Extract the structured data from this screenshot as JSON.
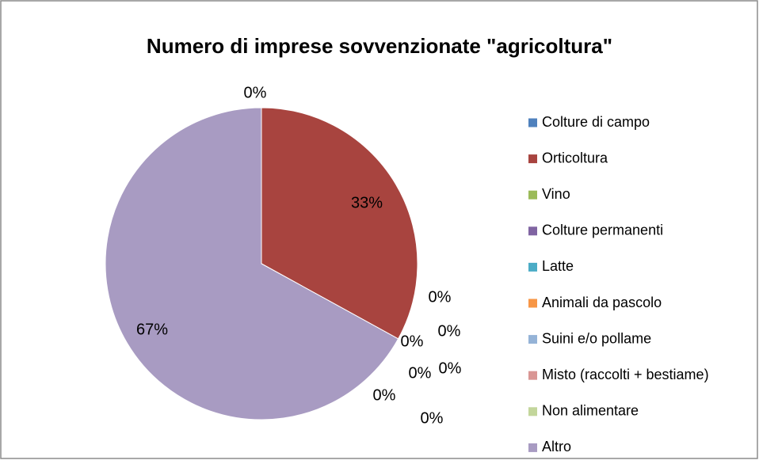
{
  "chart_data": {
    "type": "pie",
    "title": "Numero di imprese sovvenzionate \"agricoltura\"",
    "categories": [
      "Colture di campo",
      "Orticoltura",
      "Vino",
      "Colture permanenti",
      "Latte",
      "Animali da pascolo",
      "Suini e/o pollame",
      "Misto (raccolti + bestiame)",
      "Non alimentare",
      "Altro"
    ],
    "values": [
      0,
      33,
      0,
      0,
      0,
      0,
      0,
      0,
      0,
      67
    ],
    "value_labels": [
      "0%",
      "33%",
      "0%",
      "0%",
      "0%",
      "0%",
      "0%",
      "0%",
      "0%",
      "67%"
    ],
    "colors": [
      "#4F81BD",
      "#A8443F",
      "#9BBB59",
      "#8064A2",
      "#4BACC6",
      "#F79646",
      "#95B3D7",
      "#D99694",
      "#C3D69B",
      "#A89BC2"
    ],
    "legend": "right"
  }
}
